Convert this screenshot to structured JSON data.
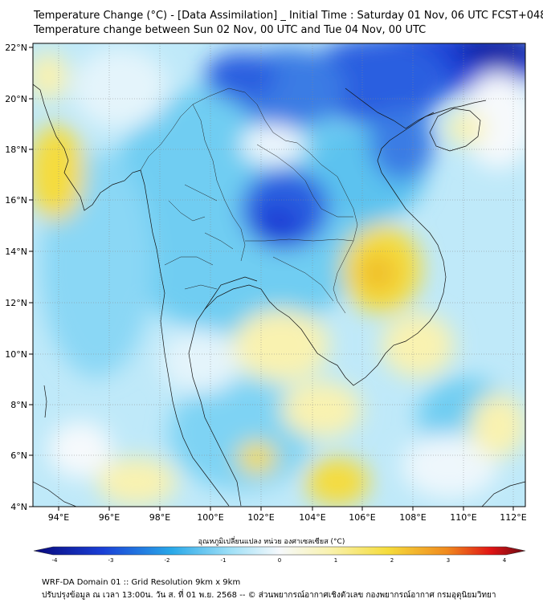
{
  "header": {
    "title_line1": "Temperature Change (°C) - [Data Assimilation] _ Initial Time : Saturday 01 Nov, 06 UTC FCST+048",
    "title_line2": "Temperature change between Sun 02 Nov, 00 UTC and Tue 04 Nov, 00 UTC"
  },
  "axes": {
    "lat_labels": [
      "22°N",
      "20°N",
      "18°N",
      "16°N",
      "14°N",
      "12°N",
      "10°N",
      "8°N",
      "6°N",
      "4°N"
    ],
    "lon_labels": [
      "94°E",
      "96°E",
      "98°E",
      "100°E",
      "102°E",
      "104°E",
      "106°E",
      "108°E",
      "110°E",
      "112°E"
    ]
  },
  "colorbar": {
    "title": "อุณหภูมิเปลี่ยนแปลง หน่วย องศาเซลเซียส (°C)",
    "labels": [
      "-4",
      "-3",
      "-2",
      "-1",
      "0",
      "1",
      "2",
      "3",
      "4"
    ],
    "min": -4,
    "max": 4,
    "colors": {
      "darkblue": "#08087a",
      "blue": "#1a3fd6",
      "sky": "#29a8e8",
      "cyan": "#9fe0f7",
      "white": "#f6f9fc",
      "lightyellow": "#f9f2b0",
      "yellow": "#f5dc3c",
      "orange": "#f08a1e",
      "red": "#e01414",
      "darkred": "#6a0a14"
    }
  },
  "footer": {
    "line1": "WRF-DA Domain 01 :: Grid Resolution 9km x 9km",
    "line2": "ปรับปรุงข้อมูล ณ เวลา 13:00น. วัน ส. ที่ 01 พ.ย. 2568 -- © ส่วนพยากรณ์อากาศเชิงตัวเลข กองพยากรณ์อากาศ กรมอุตุนิยมวิทยา"
  }
}
